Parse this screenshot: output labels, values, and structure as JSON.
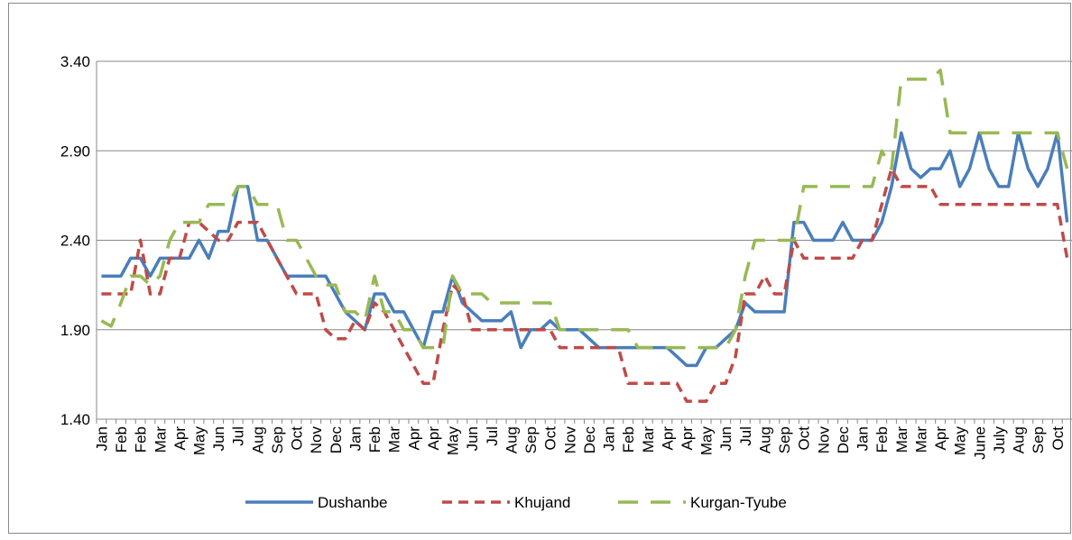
{
  "chart_data": {
    "type": "line",
    "categories": [
      "Jan",
      null,
      "Feb",
      null,
      "Feb",
      null,
      "Mar",
      null,
      "Apr",
      null,
      "May",
      null,
      "Jun",
      null,
      "Jul",
      null,
      "Aug",
      null,
      "Sep",
      null,
      "Oct",
      null,
      "Nov",
      null,
      "Dec",
      null,
      "Jan",
      null,
      "Feb",
      null,
      "Mar",
      null,
      "Apr",
      null,
      "Apr",
      null,
      "May",
      null,
      "Jun",
      null,
      "Jul",
      null,
      "Aug",
      null,
      "Sep",
      null,
      "Oct",
      null,
      "Nov",
      null,
      "Dec",
      null,
      "Jan",
      null,
      "Feb",
      null,
      "Mar",
      null,
      "Apr",
      null,
      "Apr",
      null,
      "May",
      null,
      "Jun",
      null,
      "Jul",
      null,
      "Aug",
      null,
      "Sep",
      null,
      "Oct",
      null,
      "Nov",
      null,
      "Dec",
      null,
      "Jan",
      null,
      "Feb",
      null,
      "Mar",
      null,
      "Mar",
      null,
      "Apr",
      null,
      "May",
      null,
      "June",
      null,
      "July",
      null,
      "Aug",
      null,
      "Sep",
      null,
      "Oct",
      null
    ],
    "series": [
      {
        "name": "Dushanbe",
        "color": "#4a7ebb",
        "dash": "solid",
        "values": [
          2.2,
          2.2,
          2.2,
          2.3,
          2.3,
          2.2,
          2.3,
          2.3,
          2.3,
          2.3,
          2.4,
          2.3,
          2.45,
          2.45,
          2.7,
          2.7,
          2.4,
          2.4,
          2.3,
          2.2,
          2.2,
          2.2,
          2.2,
          2.2,
          2.1,
          2.0,
          1.95,
          1.9,
          2.1,
          2.1,
          2.0,
          2.0,
          1.9,
          1.8,
          2.0,
          2.0,
          2.2,
          2.05,
          2.0,
          1.95,
          1.95,
          1.95,
          2.0,
          1.8,
          1.9,
          1.9,
          1.95,
          1.9,
          1.9,
          1.9,
          1.85,
          1.8,
          1.8,
          1.8,
          1.8,
          1.8,
          1.8,
          1.8,
          1.8,
          1.75,
          1.7,
          1.7,
          1.8,
          1.8,
          1.85,
          1.9,
          2.05,
          2.0,
          2.0,
          2.0,
          2.0,
          2.5,
          2.5,
          2.4,
          2.4,
          2.4,
          2.5,
          2.4,
          2.4,
          2.4,
          2.5,
          2.7,
          3.0,
          2.8,
          2.75,
          2.8,
          2.8,
          2.9,
          2.7,
          2.8,
          3.0,
          2.8,
          2.7,
          2.7,
          3.0,
          2.8,
          2.7,
          2.8,
          3.0,
          2.5
        ]
      },
      {
        "name": "Khujand",
        "color": "#be4b48",
        "dash": "dashed",
        "values": [
          2.1,
          2.1,
          2.1,
          2.1,
          2.4,
          2.1,
          2.1,
          2.3,
          2.3,
          2.5,
          2.5,
          2.45,
          2.4,
          2.4,
          2.5,
          2.5,
          2.5,
          2.4,
          2.3,
          2.2,
          2.1,
          2.1,
          2.1,
          1.9,
          1.85,
          1.85,
          1.95,
          1.9,
          2.05,
          2.0,
          1.9,
          1.8,
          1.7,
          1.6,
          1.6,
          1.9,
          2.15,
          2.1,
          1.9,
          1.9,
          1.9,
          1.9,
          1.9,
          1.9,
          1.9,
          1.9,
          1.9,
          1.8,
          1.8,
          1.8,
          1.8,
          1.8,
          1.8,
          1.8,
          1.6,
          1.6,
          1.6,
          1.6,
          1.6,
          1.6,
          1.5,
          1.5,
          1.5,
          1.6,
          1.6,
          1.75,
          2.1,
          2.1,
          2.2,
          2.1,
          2.1,
          2.4,
          2.3,
          2.3,
          2.3,
          2.3,
          2.3,
          2.3,
          2.4,
          2.4,
          2.6,
          2.8,
          2.7,
          2.7,
          2.7,
          2.7,
          2.6,
          2.6,
          2.6,
          2.6,
          2.6,
          2.6,
          2.6,
          2.6,
          2.6,
          2.6,
          2.6,
          2.6,
          2.6,
          2.3
        ]
      },
      {
        "name": "Kurgan-Tyube",
        "color": "#98b954",
        "dash": "longdash",
        "values": [
          1.95,
          1.92,
          2.05,
          2.2,
          2.2,
          2.15,
          2.2,
          2.4,
          2.5,
          2.5,
          2.5,
          2.6,
          2.6,
          2.6,
          2.7,
          2.7,
          2.6,
          2.6,
          2.6,
          2.4,
          2.4,
          2.3,
          2.2,
          2.15,
          2.15,
          2.0,
          2.0,
          1.95,
          2.2,
          2.0,
          2.0,
          1.9,
          1.9,
          1.8,
          1.8,
          1.8,
          2.2,
          2.1,
          2.1,
          2.1,
          2.05,
          2.05,
          2.05,
          2.05,
          2.05,
          2.05,
          2.05,
          1.9,
          1.9,
          1.9,
          1.9,
          1.9,
          1.9,
          1.9,
          1.9,
          1.8,
          1.8,
          1.8,
          1.8,
          1.8,
          1.8,
          1.8,
          1.8,
          1.8,
          1.8,
          1.9,
          2.2,
          2.4,
          2.4,
          2.4,
          2.4,
          2.4,
          2.7,
          2.7,
          2.7,
          2.7,
          2.7,
          2.7,
          2.7,
          2.7,
          2.9,
          2.8,
          3.3,
          3.3,
          3.3,
          3.3,
          3.35,
          3.0,
          3.0,
          3.0,
          3.0,
          3.0,
          3.0,
          3.0,
          3.0,
          3.0,
          3.0,
          3.0,
          3.0,
          2.8
        ]
      }
    ],
    "ylim": [
      1.4,
      3.4
    ],
    "yticks": [
      {
        "value": 1.4,
        "label": "1.40"
      },
      {
        "value": 1.9,
        "label": "1.90"
      },
      {
        "value": 2.4,
        "label": "2.40"
      },
      {
        "value": 2.9,
        "label": "2.90"
      },
      {
        "value": 3.4,
        "label": "3.40"
      }
    ],
    "grid": true,
    "legend": "bottom"
  }
}
